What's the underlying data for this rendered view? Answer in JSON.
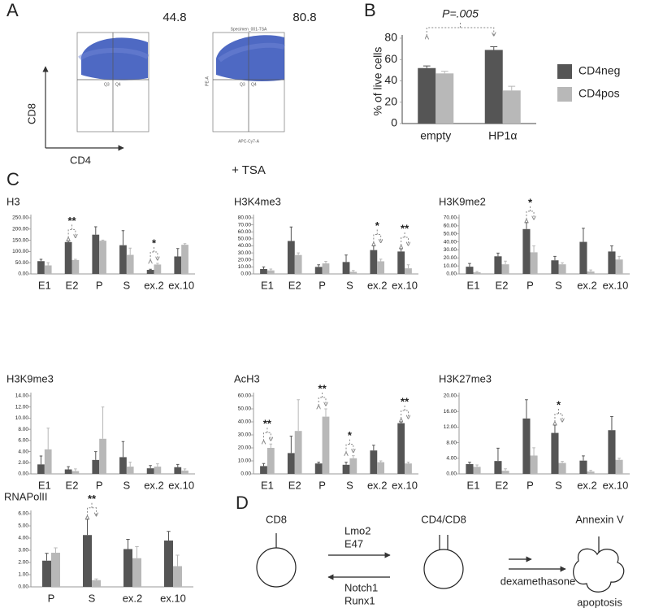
{
  "panel_labels": [
    "A",
    "B",
    "C",
    "D"
  ],
  "flow": {
    "plots": [
      {
        "value_text": "44.8",
        "quadrants": [
          "Q3",
          "Q4"
        ]
      },
      {
        "value_text": "80.8",
        "header": "Specimen_001-TSA",
        "y_label": "PE-A",
        "x_label": "APC-Cy7-A",
        "quadrants": [
          "Q3",
          "Q4"
        ]
      }
    ],
    "y_axis": "CD8",
    "x_axis": "CD4",
    "caption": "+ TSA"
  },
  "diagram": {
    "cells": [
      "CD8",
      "CD4/CD8",
      "Annexin V"
    ],
    "forward": [
      "Lmo2",
      "E47"
    ],
    "backward": [
      "Notch1",
      "Runx1"
    ],
    "treatment": "dexamethasone",
    "outcome": "apoptosis"
  },
  "chart_data": [
    {
      "type": "bar",
      "annotation": "P=.005",
      "y_label": "% of live cells",
      "categories": [
        "empty",
        "HP1α"
      ],
      "series": [
        {
          "name": "CD4neg",
          "color": "#555555",
          "values": [
            52,
            69
          ],
          "errors": [
            2,
            3
          ]
        },
        {
          "name": "CD4pos",
          "color": "#b8b8b8",
          "values": [
            47,
            31
          ],
          "errors": [
            2,
            4
          ]
        }
      ],
      "ylim": [
        0,
        80
      ],
      "yticks": [
        0,
        20,
        40,
        60,
        80
      ],
      "legend": "right"
    },
    {
      "type": "bar",
      "title": "H3",
      "categories": [
        "E1",
        "E2",
        "P",
        "S",
        "ex.2",
        "ex.10"
      ],
      "series": [
        {
          "color": "#555555",
          "values": [
            57,
            142,
            175,
            128,
            18,
            78
          ],
          "errors": [
            8,
            5,
            35,
            65,
            3,
            35
          ]
        },
        {
          "color": "#b8b8b8",
          "values": [
            38,
            62,
            148,
            85,
            42,
            130
          ],
          "errors": [
            12,
            3,
            3,
            30,
            5,
            5
          ]
        }
      ],
      "significance": [
        null,
        "**",
        null,
        null,
        "*",
        null
      ],
      "ylim": [
        0,
        250
      ],
      "yticks": [
        {
          "value": 0,
          "label": "0.00"
        },
        {
          "value": 50,
          "label": "50.00"
        },
        {
          "value": 100,
          "label": "100.00"
        },
        {
          "value": 150,
          "label": "150.00"
        },
        {
          "value": 200,
          "label": "200.00"
        },
        {
          "value": 250,
          "label": "250.00"
        }
      ]
    },
    {
      "type": "bar",
      "title": "H3K4me3",
      "categories": [
        "E1",
        "E2",
        "P",
        "S",
        "ex.2",
        "ex.10"
      ],
      "series": [
        {
          "color": "#555555",
          "values": [
            7,
            47,
            10,
            17,
            34,
            32
          ],
          "errors": [
            3,
            20,
            3,
            10,
            6,
            4
          ]
        },
        {
          "color": "#b8b8b8",
          "values": [
            5,
            27,
            15,
            3,
            18,
            8
          ],
          "errors": [
            2,
            3,
            3,
            2,
            3,
            5
          ]
        }
      ],
      "significance": [
        null,
        null,
        null,
        null,
        "*",
        "**"
      ],
      "ylim": [
        0,
        80
      ],
      "yticks": [
        {
          "value": 0,
          "label": "0.00"
        },
        {
          "value": 10,
          "label": "10.00"
        },
        {
          "value": 20,
          "label": "20.00"
        },
        {
          "value": 30,
          "label": "30.00"
        },
        {
          "value": 40,
          "label": "40.00"
        },
        {
          "value": 50,
          "label": "50.00"
        },
        {
          "value": 60,
          "label": "60.00"
        },
        {
          "value": 70,
          "label": "70.00"
        },
        {
          "value": 80,
          "label": "80.00"
        }
      ]
    },
    {
      "type": "bar",
      "title": "H3K9me2",
      "categories": [
        "E1",
        "E2",
        "P",
        "S",
        "ex.2",
        "ex.10"
      ],
      "series": [
        {
          "color": "#555555",
          "values": [
            9,
            22,
            56,
            17,
            40,
            28
          ],
          "errors": [
            4,
            4,
            8,
            5,
            17,
            7
          ]
        },
        {
          "color": "#b8b8b8",
          "values": [
            2,
            12,
            27,
            12,
            3,
            18
          ],
          "errors": [
            1,
            4,
            8,
            2,
            2,
            4
          ]
        }
      ],
      "significance": [
        null,
        null,
        "*",
        null,
        null,
        null
      ],
      "ylim": [
        0,
        70
      ],
      "yticks": [
        {
          "value": 0,
          "label": "0.00"
        },
        {
          "value": 10,
          "label": "10.00"
        },
        {
          "value": 20,
          "label": "20.00"
        },
        {
          "value": 30,
          "label": "30.00"
        },
        {
          "value": 40,
          "label": "40.00"
        },
        {
          "value": 50,
          "label": "50.00"
        },
        {
          "value": 60,
          "label": "60.00"
        },
        {
          "value": 70,
          "label": "70.00"
        }
      ]
    },
    {
      "type": "bar",
      "title": "H3K9me3",
      "categories": [
        "E1",
        "E2",
        "P",
        "S",
        "ex.2",
        "ex.10"
      ],
      "series": [
        {
          "color": "#555555",
          "values": [
            1.7,
            0.8,
            2.5,
            3,
            1,
            1.2
          ],
          "errors": [
            1.5,
            0.5,
            1.5,
            2.8,
            0.5,
            0.5
          ]
        },
        {
          "color": "#b8b8b8",
          "values": [
            4.4,
            0.5,
            6.3,
            1.3,
            1.3,
            0.6
          ],
          "errors": [
            3.8,
            0.4,
            5.7,
            0.8,
            0.5,
            0.3
          ]
        }
      ],
      "significance": [
        null,
        null,
        null,
        null,
        null,
        null
      ],
      "ylim": [
        0,
        14
      ],
      "yticks": [
        {
          "value": 0,
          "label": "0.00"
        },
        {
          "value": 2,
          "label": "2.00"
        },
        {
          "value": 4,
          "label": "4.00"
        },
        {
          "value": 6,
          "label": "6.00"
        },
        {
          "value": 8,
          "label": "8.00"
        },
        {
          "value": 10,
          "label": "10.00"
        },
        {
          "value": 12,
          "label": "12.00"
        },
        {
          "value": 14,
          "label": "14.00"
        }
      ]
    },
    {
      "type": "bar",
      "title": "AcH3",
      "categories": [
        "E1",
        "E2",
        "P",
        "S",
        "ex.2",
        "ex.10"
      ],
      "series": [
        {
          "color": "#555555",
          "values": [
            6,
            16,
            8,
            7,
            18,
            39
          ],
          "errors": [
            2,
            13,
            1,
            2,
            4,
            1
          ]
        },
        {
          "color": "#b8b8b8",
          "values": [
            20,
            33,
            44,
            12,
            9,
            8
          ],
          "errors": [
            3,
            24,
            6,
            2,
            1,
            1
          ]
        }
      ],
      "significance": [
        "**",
        null,
        "**",
        "*",
        null,
        "**"
      ],
      "ylim": [
        0,
        60
      ],
      "yticks": [
        {
          "value": 0,
          "label": "0.00"
        },
        {
          "value": 10,
          "label": "10.00"
        },
        {
          "value": 20,
          "label": "20.00"
        },
        {
          "value": 30,
          "label": "30.00"
        },
        {
          "value": 40,
          "label": "40.00"
        },
        {
          "value": 50,
          "label": "50.00"
        },
        {
          "value": 60,
          "label": "60.00"
        }
      ]
    },
    {
      "type": "bar",
      "title": "H3K27me3",
      "categories": [
        "E1",
        "E2",
        "P",
        "S",
        "ex.2",
        "ex.10"
      ],
      "series": [
        {
          "color": "#555555",
          "values": [
            2.5,
            3.3,
            14.2,
            10.5,
            3.4,
            11.2
          ],
          "errors": [
            0.5,
            3.3,
            4.8,
            2,
            1.2,
            3.5
          ]
        },
        {
          "color": "#b8b8b8",
          "values": [
            1.8,
            0.8,
            4.7,
            2.8,
            0.6,
            3.6
          ],
          "errors": [
            0.5,
            0.5,
            2,
            0.4,
            0.3,
            0.4
          ]
        }
      ],
      "significance": [
        null,
        null,
        null,
        "*",
        null,
        null
      ],
      "ylim": [
        0,
        20
      ],
      "yticks": [
        {
          "value": 0,
          "label": "0.00"
        },
        {
          "value": 4,
          "label": "4.00"
        },
        {
          "value": 8,
          "label": "8.00"
        },
        {
          "value": 12,
          "label": "12.00"
        },
        {
          "value": 16,
          "label": "16.00"
        },
        {
          "value": 20,
          "label": "20.00"
        }
      ]
    },
    {
      "type": "bar",
      "title": "RNAPolII",
      "categories": [
        "P",
        "S",
        "ex.2",
        "ex.10"
      ],
      "series": [
        {
          "color": "#555555",
          "values": [
            2.15,
            4.25,
            3.1,
            3.8
          ],
          "errors": [
            0.6,
            1.3,
            0.8,
            0.75
          ]
        },
        {
          "color": "#b8b8b8",
          "values": [
            2.8,
            0.55,
            2.35,
            1.7
          ],
          "errors": [
            0.4,
            0.1,
            0.95,
            0.9
          ]
        }
      ],
      "significance": [
        null,
        "**",
        null,
        null
      ],
      "ylim": [
        0,
        6
      ],
      "yticks": [
        {
          "value": 0,
          "label": "0.00"
        },
        {
          "value": 1,
          "label": "1.00"
        },
        {
          "value": 2,
          "label": "2.00"
        },
        {
          "value": 3,
          "label": "3.00"
        },
        {
          "value": 4,
          "label": "4.00"
        },
        {
          "value": 5,
          "label": "5.00"
        },
        {
          "value": 6,
          "label": "6.00"
        }
      ]
    }
  ]
}
